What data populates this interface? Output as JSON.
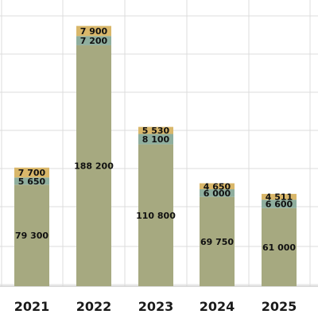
{
  "chart_data": {
    "type": "bar",
    "stacked": true,
    "categories": [
      "2021",
      "2022",
      "2023",
      "2024",
      "2025"
    ],
    "series": [
      {
        "values": [
          79300,
          188200,
          110800,
          69750,
          61000
        ],
        "labels": [
          "79 300",
          "188 200",
          "110 800",
          "69 750",
          "61 000"
        ],
        "color": "#a6a980"
      },
      {
        "values": [
          5650,
          7200,
          8100,
          6000,
          6600
        ],
        "labels": [
          "5 650",
          "7 200",
          "8 100",
          "6 000",
          "6 600"
        ],
        "color": "#8fae9e"
      },
      {
        "values": [
          7700,
          7900,
          5530,
          4650,
          4511
        ],
        "labels": [
          "7 700",
          "7 900",
          "5 530",
          "4 650",
          "4 511"
        ],
        "color": "#d9b76a"
      }
    ],
    "ylim": [
      0,
      220000
    ],
    "grid": true,
    "legend": false
  }
}
